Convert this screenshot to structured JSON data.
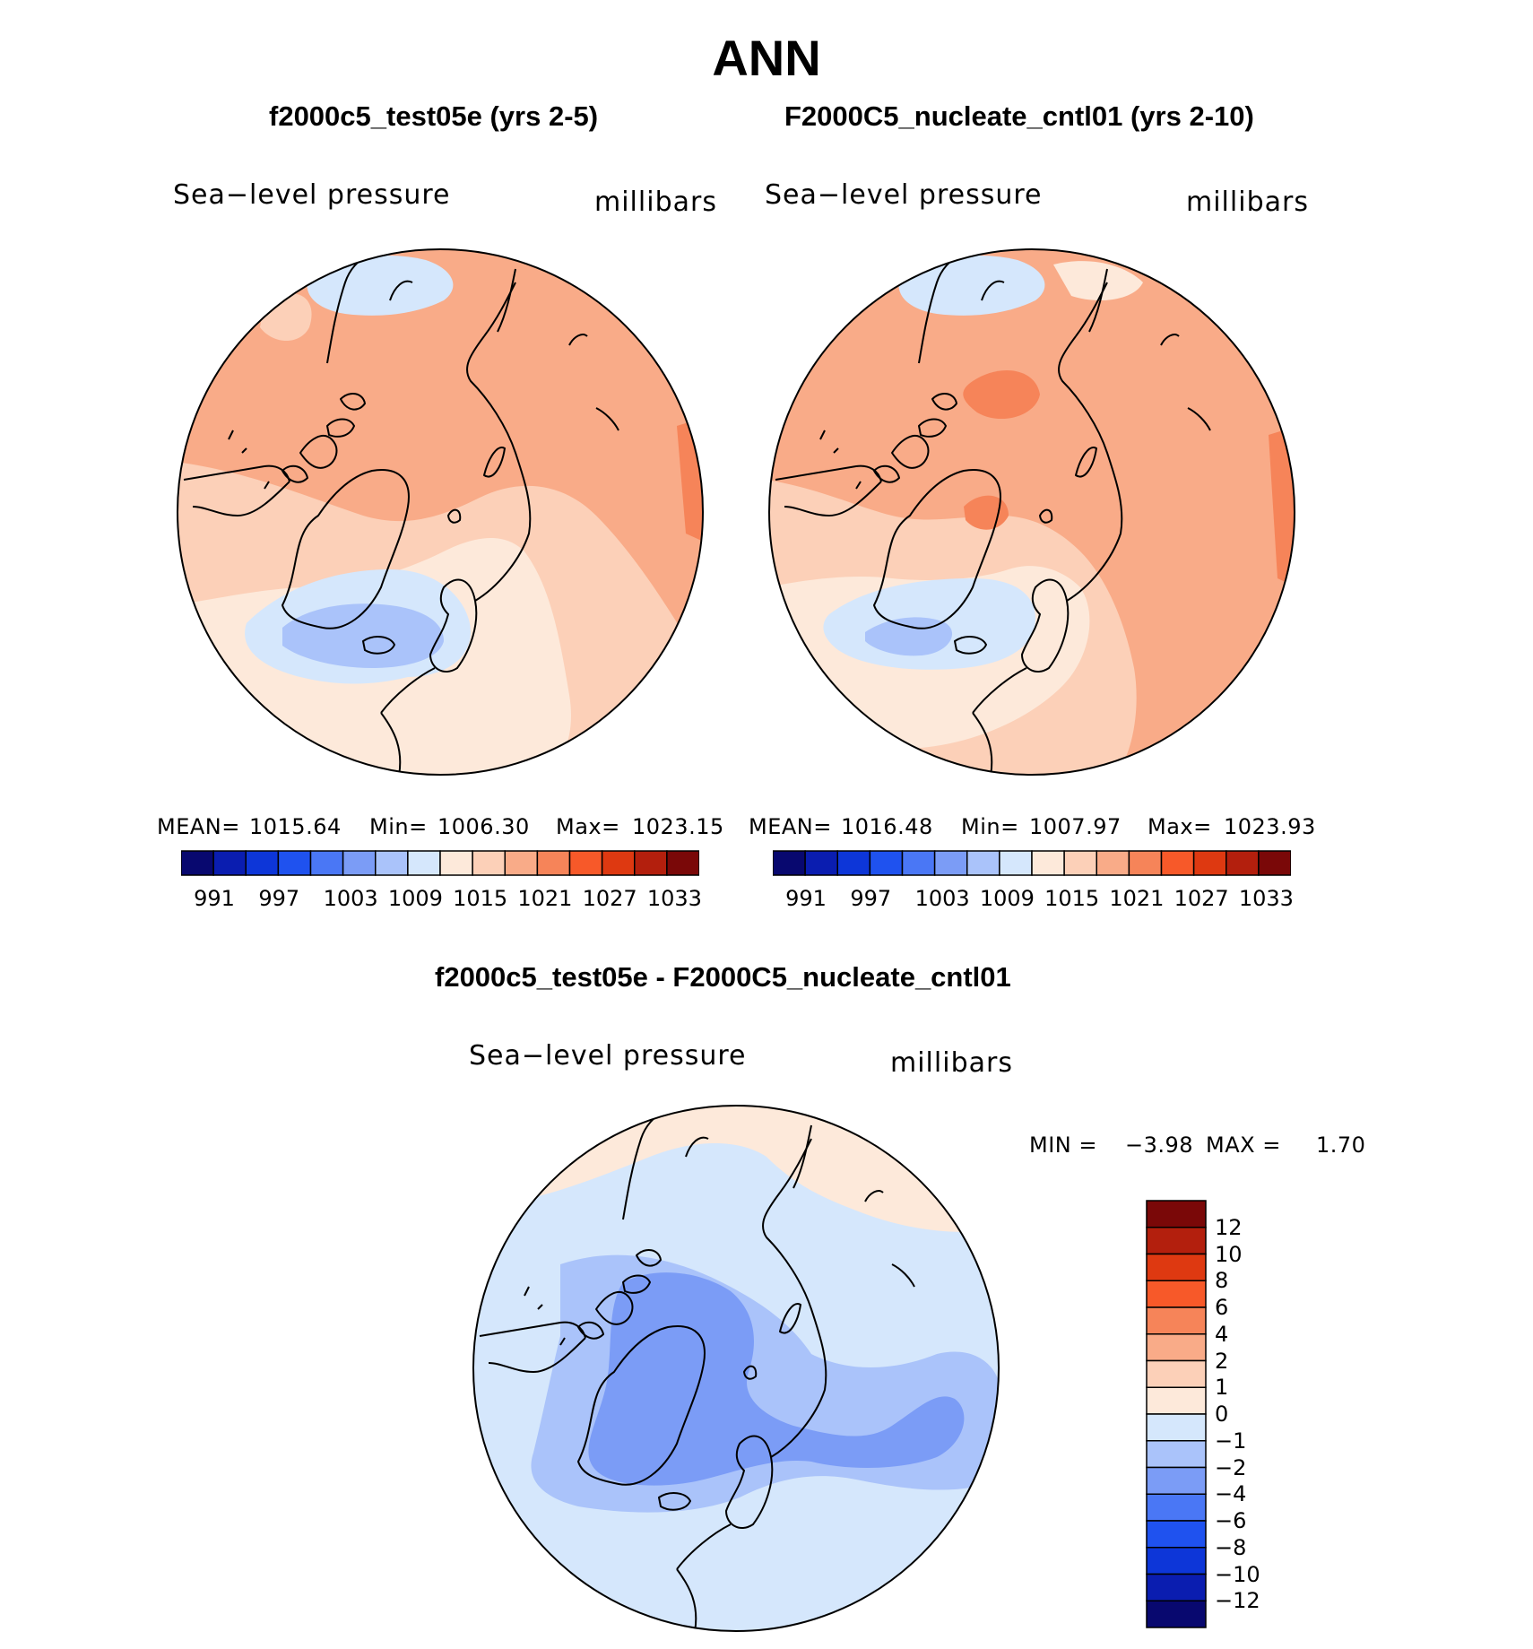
{
  "main_title": "ANN",
  "colors": {
    "coastline": "#000000",
    "abs_scale": [
      "#08086f",
      "#0a1db0",
      "#0d36d8",
      "#1f52ef",
      "#4a77f5",
      "#7b9cf6",
      "#aac3fa",
      "#d5e7fc",
      "#fde9da",
      "#fcd0b8",
      "#f9ab88",
      "#f68459",
      "#f75929",
      "#de3911",
      "#b31f0d",
      "#7a0808"
    ],
    "diff_scale": [
      "#08086f",
      "#0a1db0",
      "#0d36d8",
      "#1f52ef",
      "#4a77f5",
      "#7b9cf6",
      "#aac3fa",
      "#d5e7fc",
      "#fde9da",
      "#fcd0b8",
      "#f9ab88",
      "#f68459",
      "#f75929",
      "#de3911",
      "#b31f0d",
      "#7a0808"
    ]
  },
  "chart_data": [
    {
      "type": "heatmap",
      "projection": "north-polar-stereographic",
      "title": "f2000c5_test05e (yrs 2-5)",
      "variable": "Sea−level pressure",
      "units": "millibars",
      "stats": {
        "mean_label": "MEAN=",
        "mean": "1015.64",
        "min_label": "Min=",
        "min": "1006.30",
        "max_label": "Max=",
        "max": "1023.15"
      },
      "colorbar_ticks": [
        "991",
        "997",
        "1003",
        "1009",
        "1015",
        "1021",
        "1027",
        "1033"
      ],
      "levels": [
        991,
        994,
        997,
        1000,
        1003,
        1006,
        1009,
        1012,
        1015,
        1018,
        1021,
        1024,
        1027,
        1030,
        1033
      ]
    },
    {
      "type": "heatmap",
      "projection": "north-polar-stereographic",
      "title": "F2000C5_nucleate_cntl01 (yrs 2-10)",
      "variable": "Sea−level pressure",
      "units": "millibars",
      "stats": {
        "mean_label": "MEAN=",
        "mean": "1016.48",
        "min_label": "Min=",
        "min": "1007.97",
        "max_label": "Max=",
        "max": "1023.93"
      },
      "colorbar_ticks": [
        "991",
        "997",
        "1003",
        "1009",
        "1015",
        "1021",
        "1027",
        "1033"
      ],
      "levels": [
        991,
        994,
        997,
        1000,
        1003,
        1006,
        1009,
        1012,
        1015,
        1018,
        1021,
        1024,
        1027,
        1030,
        1033
      ]
    },
    {
      "type": "heatmap",
      "projection": "north-polar-stereographic",
      "title": "f2000c5_test05e - F2000C5_nucleate_cntl01",
      "variable": "Sea−level pressure",
      "units": "millibars",
      "stats": {
        "min_label": "MIN =",
        "min": "−3.98",
        "max_label": "MAX =",
        "max": "1.70"
      },
      "colorbar_ticks": [
        "12",
        "10",
        "8",
        "6",
        "4",
        "2",
        "1",
        "0",
        "−1",
        "−2",
        "−4",
        "−6",
        "−8",
        "−10",
        "−12"
      ],
      "levels": [
        12,
        10,
        8,
        6,
        4,
        2,
        1,
        0,
        -1,
        -2,
        -4,
        -6,
        -8,
        -10,
        -12
      ]
    }
  ]
}
